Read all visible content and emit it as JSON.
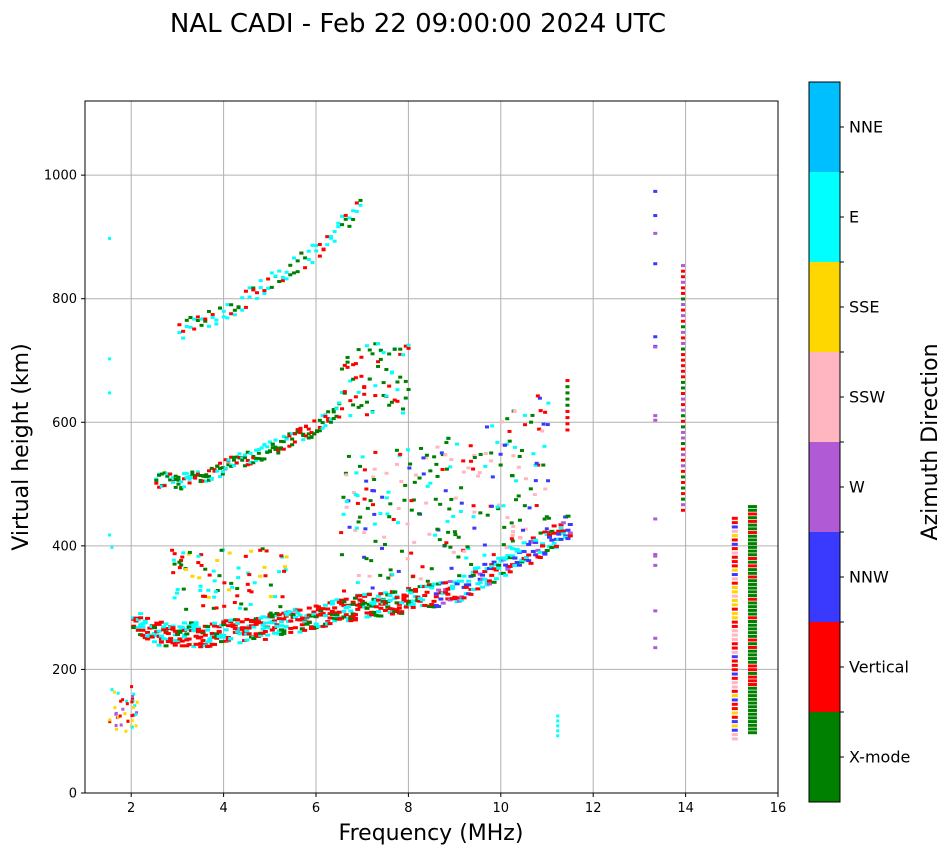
{
  "chart_data": {
    "type": "scatter",
    "title": "NAL CADI - Feb 22 09:00:00 2024 UTC",
    "xlabel": "Frequency (MHz)",
    "ylabel": "Virtual height (km)",
    "xlim": [
      1,
      16
    ],
    "ylim": [
      0,
      1120
    ],
    "xticks": [
      2,
      4,
      6,
      8,
      10,
      12,
      14,
      16
    ],
    "yticks": [
      0,
      200,
      400,
      600,
      800,
      1000
    ],
    "grid": true,
    "colorbar": {
      "title": "Azimuth Direction",
      "categories": [
        {
          "name": "X-mode",
          "color": "#008000"
        },
        {
          "name": "Vertical",
          "color": "#ff0000"
        },
        {
          "name": "NNW",
          "color": "#3a3aff"
        },
        {
          "name": "W",
          "color": "#b05ad6"
        },
        {
          "name": "SSW",
          "color": "#ffb6c1"
        },
        {
          "name": "SSE",
          "color": "#ffd700"
        },
        {
          "name": "E",
          "color": "#00ffff"
        },
        {
          "name": "NNE",
          "color": "#00bfff"
        }
      ]
    },
    "series": [
      {
        "name": "E-layer echoes",
        "trace": {
          "f": [
            1.5,
            2.0
          ],
          "h0": [
            90,
            150
          ]
        }
      },
      {
        "name": "F-layer trace",
        "trace": {
          "f": [
            2.0,
            2.5,
            3.5,
            5.0,
            6.0,
            7.0,
            8.0,
            9.0,
            10.0,
            11.0,
            11.5
          ],
          "h": [
            280,
            260,
            258,
            272,
            290,
            305,
            315,
            330,
            370,
            410,
            440
          ]
        }
      },
      {
        "name": "F-layer 2nd hop",
        "trace": {
          "f": [
            2.5,
            3.0,
            4.0,
            5.0,
            6.0,
            7.0
          ],
          "h": [
            505,
            500,
            525,
            555,
            590,
            650
          ]
        }
      },
      {
        "name": "F-layer 3rd hop",
        "trace": {
          "f": [
            3.0,
            4.0,
            5.0,
            6.0
          ],
          "h": [
            750,
            780,
            830,
            880
          ]
        }
      },
      {
        "name": "Interference columns",
        "x": [
          13.2,
          13.9,
          15.0,
          15.3
        ]
      }
    ]
  }
}
